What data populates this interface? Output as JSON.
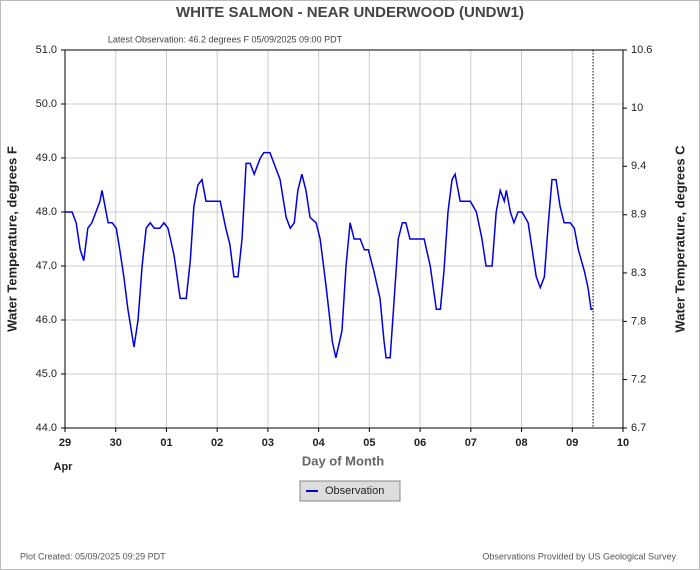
{
  "chart_data": {
    "type": "line",
    "title": "WHITE SALMON - NEAR UNDERWOOD  (UNDW1)",
    "subtitle": "Latest Observation: 46.2 degrees F  05/09/2025 09:00 PDT",
    "x_label": "Day of Month",
    "x_sublabel": "Apr",
    "y_label": "Water Temperature, degrees F",
    "y2_label": "Water Temperature, degrees C",
    "footer_left": "Plot Created: 05/09/2025 09:29 PDT",
    "footer_right": "Observations Provided by US Geological Survey",
    "xlim": [
      0,
      11
    ],
    "xticks": [
      {
        "value": 0,
        "label": "29"
      },
      {
        "value": 1,
        "label": "30"
      },
      {
        "value": 2,
        "label": "01"
      },
      {
        "value": 3,
        "label": "02"
      },
      {
        "value": 4,
        "label": "03"
      },
      {
        "value": 5,
        "label": "04"
      },
      {
        "value": 6,
        "label": "05"
      },
      {
        "value": 7,
        "label": "06"
      },
      {
        "value": 8,
        "label": "07"
      },
      {
        "value": 9,
        "label": "08"
      },
      {
        "value": 10,
        "label": "09"
      },
      {
        "value": 11,
        "label": "10"
      }
    ],
    "ylim": [
      44,
      51
    ],
    "yticks": [
      {
        "value": 44,
        "label": "44.0"
      },
      {
        "value": 45,
        "label": "45.0"
      },
      {
        "value": 46,
        "label": "46.0"
      },
      {
        "value": 47,
        "label": "47.0"
      },
      {
        "value": 48,
        "label": "48.0"
      },
      {
        "value": 49,
        "label": "49.0"
      },
      {
        "value": 50,
        "label": "50.0"
      },
      {
        "value": 51,
        "label": "51.0"
      }
    ],
    "y2lim": [
      6.7,
      10.6
    ],
    "y2ticks": [
      6.7,
      7.2,
      7.8,
      8.3,
      8.9,
      9.4,
      10,
      10.6
    ],
    "grid": true,
    "series": [
      {
        "name": "Observation",
        "color": "#0000dd",
        "x": [
          0,
          0.14,
          0.22,
          0.3,
          0.37,
          0.45,
          0.53,
          0.61,
          0.69,
          0.73,
          0.81,
          0.85,
          0.93,
          1.01,
          1.08,
          1.16,
          1.24,
          1.36,
          1.44,
          1.52,
          1.6,
          1.68,
          1.76,
          1.87,
          1.95,
          2.03,
          2.15,
          2.27,
          2.39,
          2.47,
          2.54,
          2.62,
          2.7,
          2.78,
          2.94,
          3.06,
          3.17,
          3.25,
          3.33,
          3.41,
          3.49,
          3.57,
          3.65,
          3.73,
          3.85,
          3.92,
          4.04,
          4.12,
          4.24,
          4.36,
          4.44,
          4.52,
          4.59,
          4.67,
          4.75,
          4.83,
          4.95,
          5.03,
          5.15,
          5.27,
          5.34,
          5.46,
          5.54,
          5.62,
          5.7,
          5.82,
          5.9,
          5.98,
          6.09,
          6.21,
          6.29,
          6.33,
          6.41,
          6.49,
          6.57,
          6.65,
          6.72,
          6.8,
          6.92,
          7.08,
          7.2,
          7.32,
          7.4,
          7.47,
          7.55,
          7.63,
          7.69,
          7.79,
          7.91,
          7.99,
          8.11,
          8.22,
          8.3,
          8.42,
          8.5,
          8.58,
          8.66,
          8.7,
          8.78,
          8.85,
          8.93,
          9.01,
          9.13,
          9.21,
          9.29,
          9.37,
          9.45,
          9.52,
          9.6,
          9.68,
          9.76,
          9.84,
          9.96,
          10.04,
          10.12,
          10.24,
          10.31,
          10.37,
          10.41
        ],
        "values": [
          48.0,
          48.0,
          47.8,
          47.3,
          47.1,
          47.7,
          47.8,
          48.0,
          48.2,
          48.4,
          48.0,
          47.8,
          47.8,
          47.7,
          47.3,
          46.8,
          46.2,
          45.5,
          46.0,
          47.0,
          47.7,
          47.8,
          47.7,
          47.7,
          47.8,
          47.7,
          47.2,
          46.4,
          46.4,
          47.1,
          48.1,
          48.5,
          48.6,
          48.2,
          48.2,
          48.2,
          47.7,
          47.4,
          46.8,
          46.8,
          47.5,
          48.9,
          48.9,
          48.7,
          49.0,
          49.1,
          49.1,
          48.9,
          48.6,
          47.9,
          47.7,
          47.8,
          48.4,
          48.7,
          48.4,
          47.9,
          47.8,
          47.5,
          46.6,
          45.6,
          45.3,
          45.8,
          47.0,
          47.8,
          47.5,
          47.5,
          47.3,
          47.3,
          46.9,
          46.4,
          45.6,
          45.3,
          45.3,
          46.4,
          47.5,
          47.8,
          47.8,
          47.5,
          47.5,
          47.5,
          47.0,
          46.2,
          46.2,
          46.9,
          48.0,
          48.6,
          48.7,
          48.2,
          48.2,
          48.2,
          48.0,
          47.5,
          47.0,
          47.0,
          48.0,
          48.4,
          48.2,
          48.4,
          48.0,
          47.8,
          48.0,
          48.0,
          47.8,
          47.3,
          46.8,
          46.6,
          46.8,
          47.7,
          48.6,
          48.6,
          48.1,
          47.8,
          47.8,
          47.7,
          47.3,
          46.9,
          46.6,
          46.2,
          46.2
        ]
      }
    ]
  }
}
